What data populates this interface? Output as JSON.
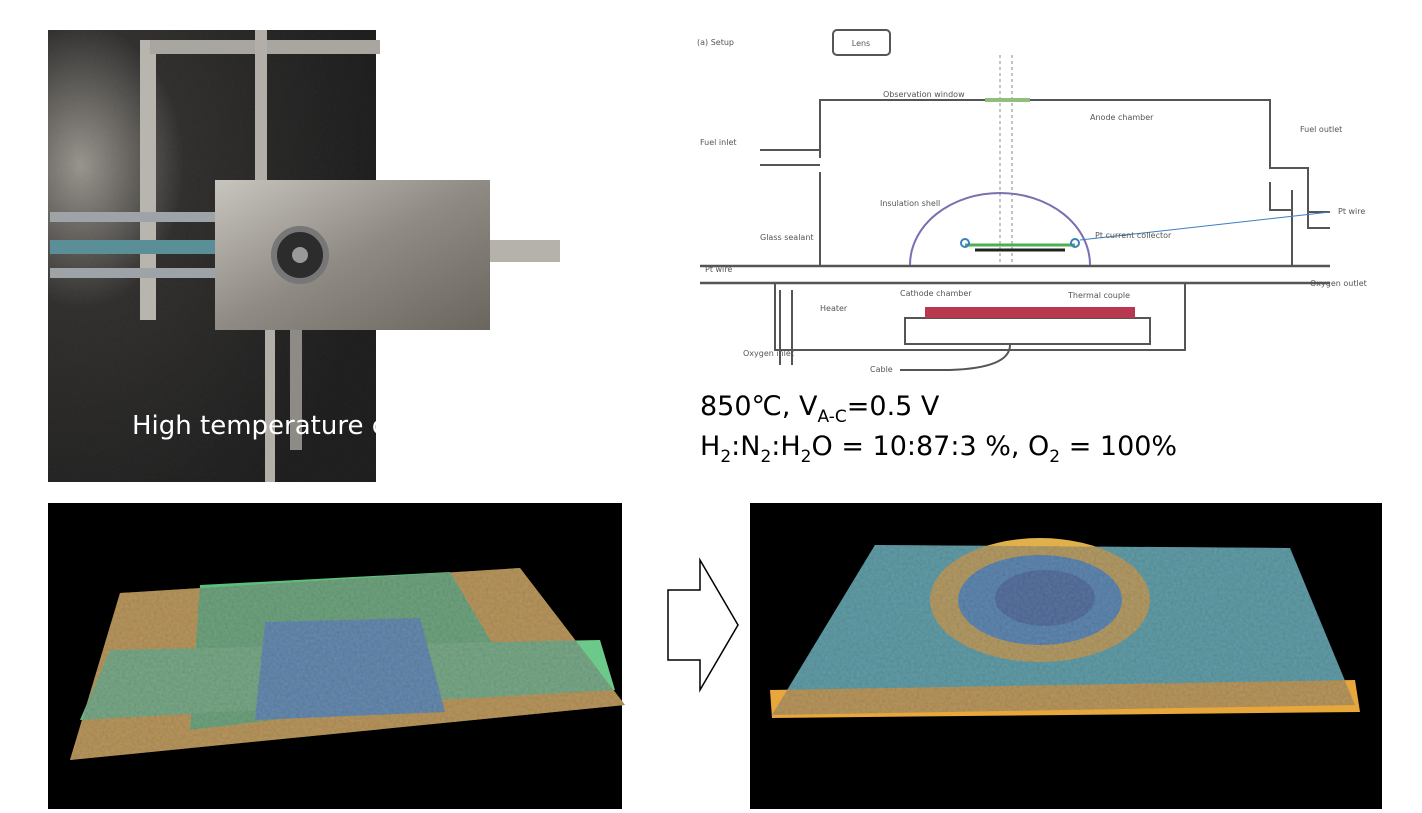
{
  "photo": {
    "caption": "High temperature chamber"
  },
  "setup": {
    "title": "(a) Setup",
    "labels": [
      "Lens",
      "Observation window",
      "Anode chamber",
      "Fuel inlet",
      "Fuel outlet",
      "Insulation shell",
      "Pt wire",
      "Glass sealant",
      "Pt current collector",
      "Pt wire",
      "Oxygen outlet",
      "Cathode chamber",
      "Thermal couple",
      "Heater",
      "Oxygen inlet",
      "Cable"
    ]
  },
  "conditions": [
    [
      "850℃, V",
      "A-C",
      "=0.5 V"
    ],
    [
      "H",
      "2",
      ":N",
      "2",
      ":H",
      "2",
      "O = 10:87:3 %, O",
      "2",
      " = 100%"
    ]
  ]
}
